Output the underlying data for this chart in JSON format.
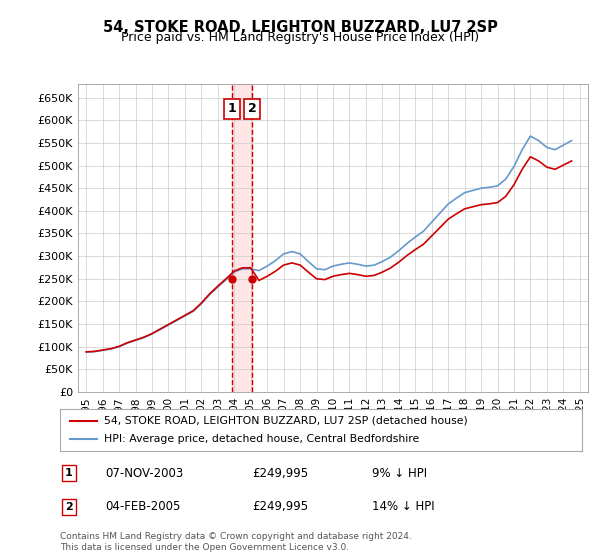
{
  "title1": "54, STOKE ROAD, LEIGHTON BUZZARD, LU7 2SP",
  "title2": "Price paid vs. HM Land Registry's House Price Index (HPI)",
  "ylabel_ticks": [
    "£0",
    "£50K",
    "£100K",
    "£150K",
    "£200K",
    "£250K",
    "£300K",
    "£350K",
    "£400K",
    "£450K",
    "£500K",
    "£550K",
    "£600K",
    "£650K"
  ],
  "ytick_values": [
    0,
    50000,
    100000,
    150000,
    200000,
    250000,
    300000,
    350000,
    400000,
    450000,
    500000,
    550000,
    600000,
    650000
  ],
  "ylim": [
    0,
    680000
  ],
  "xlim_start": 1994.5,
  "xlim_end": 2025.5,
  "xtick_years": [
    1995,
    1996,
    1997,
    1998,
    1999,
    2000,
    2001,
    2002,
    2003,
    2004,
    2005,
    2006,
    2007,
    2008,
    2009,
    2010,
    2011,
    2012,
    2013,
    2014,
    2015,
    2016,
    2017,
    2018,
    2019,
    2020,
    2021,
    2022,
    2023,
    2024,
    2025
  ],
  "hpi_color": "#6699cc",
  "price_color": "#cc0000",
  "transaction1_date": 2003.85,
  "transaction1_price": 249995,
  "transaction2_date": 2005.09,
  "transaction2_price": 249995,
  "legend_line1": "54, STOKE ROAD, LEIGHTON BUZZARD, LU7 2SP (detached house)",
  "legend_line2": "HPI: Average price, detached house, Central Bedfordshire",
  "table_entries": [
    {
      "num": "1",
      "date": "07-NOV-2003",
      "price": "£249,995",
      "hpi": "9% ↓ HPI"
    },
    {
      "num": "2",
      "date": "04-FEB-2005",
      "price": "£249,995",
      "hpi": "14% ↓ HPI"
    }
  ],
  "footer": "Contains HM Land Registry data © Crown copyright and database right 2024.\nThis data is licensed under the Open Government Licence v3.0.",
  "background_color": "#ffffff",
  "grid_color": "#cccccc",
  "vline_color": "#cc0000",
  "vline_style": "dashed",
  "highlight_color": "#ffcccc"
}
